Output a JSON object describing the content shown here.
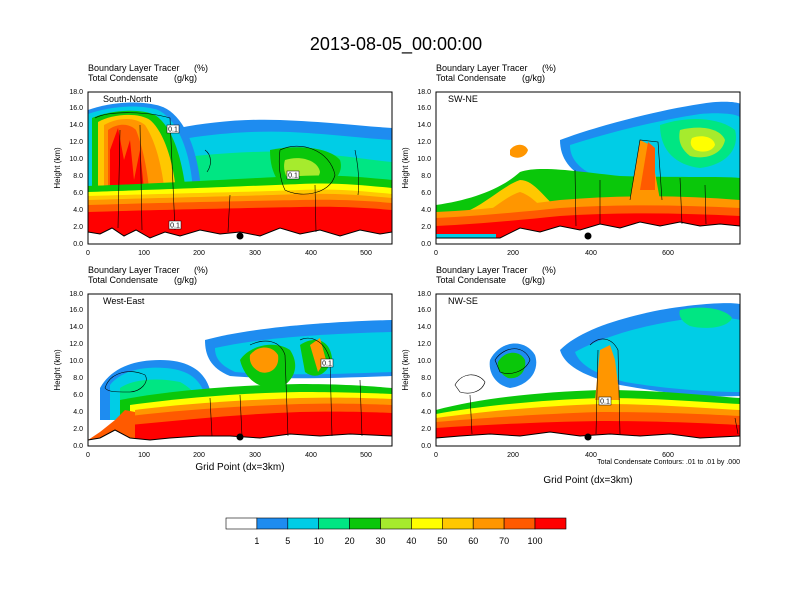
{
  "figure": {
    "title": "2013-08-05_00:00:00",
    "field_label": "Boundary Layer Tracer",
    "field_units": "(%)",
    "contour_label": "Total Condensate",
    "contour_units": "(g/kg)",
    "x_axis_label": "Grid Point (dx=3km)",
    "contour_note": "Total Condensate Contours: .01 to .01 by .000"
  },
  "colorbar": {
    "levels": [
      "1",
      "5",
      "10",
      "20",
      "30",
      "40",
      "50",
      "60",
      "70",
      "100"
    ],
    "colors": [
      "#ffffff",
      "#1e8cf0",
      "#00cde6",
      "#00e683",
      "#0ac70a",
      "#a6eb2d",
      "#ffff00",
      "#ffc800",
      "#ff9600",
      "#ff5a00",
      "#ff0000"
    ]
  },
  "chart_data": [
    {
      "type": "contour",
      "name": "South-North",
      "xlim": [
        0,
        546
      ],
      "xticks": [
        "0",
        "100",
        "200",
        "300",
        "400",
        "500"
      ],
      "ylim": [
        0,
        18
      ],
      "yticks": [
        "0.0",
        "2.0",
        "4.0",
        "6.0",
        "8.0",
        "10.0",
        "12.0",
        "14.0",
        "16.0",
        "18.0"
      ],
      "ylabel": "Height (km)",
      "marker_x": 275,
      "contour_labels": [
        "0.1",
        "0.1",
        "0.1"
      ],
      "bl_top_km": [
        [
          0,
          5.0
        ],
        [
          60,
          4.8
        ],
        [
          120,
          4.6
        ],
        [
          200,
          4.8
        ],
        [
          300,
          5.0
        ],
        [
          400,
          5.2
        ],
        [
          500,
          5.3
        ],
        [
          546,
          5.4
        ]
      ],
      "anvil_km": [
        [
          [
            150,
            12.5
          ],
          [
            546,
            13.8
          ]
        ],
        [
          [
            60,
            6
          ],
          [
            200,
            14
          ]
        ]
      ]
    },
    {
      "type": "contour",
      "name": "SW-NE",
      "xlim": [
        0,
        772
      ],
      "xticks": [
        "0",
        "200",
        "400",
        "600"
      ],
      "ylim": [
        0,
        18
      ],
      "yticks": [
        "0.0",
        "2.0",
        "4.0",
        "6.0",
        "8.0",
        "10.0",
        "12.0",
        "14.0",
        "16.0",
        "18.0"
      ],
      "ylabel": "Height (km)",
      "marker_x": 390,
      "contour_labels": [],
      "bl_top_km": [
        [
          0,
          3.5
        ],
        [
          200,
          3.0
        ],
        [
          280,
          4.5
        ],
        [
          400,
          5.0
        ],
        [
          600,
          5.2
        ],
        [
          772,
          5.0
        ]
      ],
      "anvil_km": [
        [
          [
            400,
            12.0
          ],
          [
            772,
            15.0
          ]
        ]
      ]
    },
    {
      "type": "contour",
      "name": "West-East",
      "xlim": [
        0,
        546
      ],
      "xticks": [
        "0",
        "100",
        "200",
        "300",
        "400",
        "500"
      ],
      "ylim": [
        0,
        18
      ],
      "yticks": [
        "0.0",
        "2.0",
        "4.0",
        "6.0",
        "8.0",
        "10.0",
        "12.0",
        "14.0",
        "16.0",
        "18.0"
      ],
      "ylabel": "Height (km)",
      "marker_x": 275,
      "contour_labels": [
        "0.1"
      ],
      "bl_top_km": [
        [
          0,
          1.5
        ],
        [
          50,
          3.0
        ],
        [
          150,
          4.8
        ],
        [
          300,
          5.5
        ],
        [
          400,
          6.0
        ],
        [
          546,
          6.0
        ]
      ],
      "anvil_km": [
        [
          [
            270,
            12.0
          ],
          [
            546,
            14.0
          ]
        ]
      ]
    },
    {
      "type": "contour",
      "name": "NW-SE",
      "xlim": [
        0,
        772
      ],
      "xticks": [
        "0",
        "200",
        "400",
        "600"
      ],
      "ylim": [
        0,
        18
      ],
      "yticks": [
        "0.0",
        "2.0",
        "4.0",
        "6.0",
        "8.0",
        "10.0",
        "12.0",
        "14.0",
        "16.0",
        "18.0"
      ],
      "ylabel": "Height (km)",
      "marker_x": 390,
      "contour_labels": [
        "0.1"
      ],
      "bl_top_km": [
        [
          0,
          3.5
        ],
        [
          200,
          4.5
        ],
        [
          400,
          4.5
        ],
        [
          600,
          4.0
        ],
        [
          772,
          3.5
        ]
      ],
      "anvil_km": [
        [
          [
            400,
            12.0
          ],
          [
            772,
            16.0
          ]
        ]
      ]
    }
  ]
}
